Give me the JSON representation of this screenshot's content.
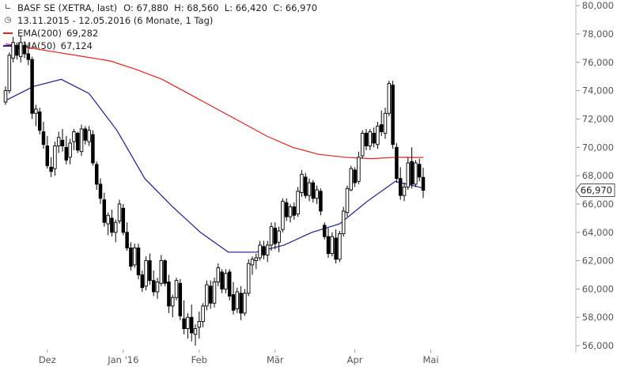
{
  "header": {
    "instrument": "BASF SE (XETRA, last)",
    "ohlc_text": "O: 67,880  H: 68,560  L: 66,420  C: 66,970",
    "range_text": "13.11.2015 - 12.05.2016 (6 Monate, 1 Tag)",
    "icon_chart": "candlestick-icon",
    "icon_clock": "clock-icon"
  },
  "colors": {
    "ema200": "#e8221c",
    "ema50": "#1c1c9c",
    "candle": "#000000",
    "axis_text": "#555555",
    "badge_border": "#555555"
  },
  "chart_data": {
    "type": "candlestick",
    "ylim": [
      55500,
      80400
    ],
    "y_ticks": [
      56000,
      58000,
      60000,
      62000,
      64000,
      66000,
      68000,
      70000,
      72000,
      74000,
      76000,
      78000,
      80000
    ],
    "y_tick_labels": [
      "56,000",
      "58,000",
      "60,000",
      "62,000",
      "64,000",
      "66,000",
      "68,000",
      "70,000",
      "72,000",
      "74,000",
      "76,000",
      "78,000",
      "80,000"
    ],
    "x_labels": [
      {
        "label": "Dez",
        "index": 11
      },
      {
        "label": "Jan '16",
        "index": 31
      },
      {
        "label": "Feb",
        "index": 51
      },
      {
        "label": "Mär",
        "index": 71
      },
      {
        "label": "Apr",
        "index": 92
      },
      {
        "label": "Mai",
        "index": 112
      }
    ],
    "last_price": 66970,
    "last_price_label": "66,970",
    "series": [
      {
        "name": "EMA(200)",
        "value_label": "69,282",
        "color": "#e8221c",
        "values": [
          77300,
          77000,
          76700,
          76400,
          76100,
          75500,
          74800,
          73800,
          72800,
          71800,
          70800,
          70000,
          69500,
          69300,
          69200,
          69300,
          69282
        ]
      },
      {
        "name": "EMA(50)",
        "value_label": "67,124",
        "color": "#1c1c9c",
        "values": [
          73300,
          74300,
          74800,
          73800,
          71200,
          67800,
          65800,
          64000,
          62600,
          62600,
          63100,
          64000,
          64600,
          66200,
          67600,
          67124
        ]
      }
    ],
    "candles": [
      [
        73200,
        74300,
        73000,
        74000
      ],
      [
        74000,
        76700,
        73800,
        76500
      ],
      [
        76300,
        77800,
        76000,
        77400
      ],
      [
        77200,
        77400,
        76200,
        76500
      ],
      [
        76400,
        77900,
        76000,
        77400
      ],
      [
        77200,
        77500,
        76300,
        76600
      ],
      [
        76600,
        77200,
        75800,
        76200
      ],
      [
        76200,
        76400,
        72000,
        72400
      ],
      [
        72400,
        73000,
        71500,
        72700
      ],
      [
        72500,
        72800,
        70900,
        71200
      ],
      [
        71100,
        71800,
        69900,
        70200
      ],
      [
        70100,
        70800,
        68500,
        68700
      ],
      [
        68600,
        69300,
        67900,
        68300
      ],
      [
        68500,
        70400,
        68000,
        70100
      ],
      [
        70100,
        71100,
        69600,
        70700
      ],
      [
        70500,
        71300,
        69700,
        70100
      ],
      [
        70000,
        70800,
        68800,
        69100
      ],
      [
        69300,
        70600,
        68800,
        70300
      ],
      [
        70400,
        71300,
        69800,
        71100
      ],
      [
        71000,
        71100,
        69600,
        69800
      ],
      [
        69700,
        71600,
        69400,
        71300
      ],
      [
        71300,
        71500,
        70200,
        70500
      ],
      [
        70400,
        71500,
        70100,
        71200
      ],
      [
        70900,
        71200,
        68700,
        68900
      ],
      [
        68800,
        69000,
        67000,
        67400
      ],
      [
        67400,
        67800,
        66000,
        66400
      ],
      [
        66300,
        66800,
        64400,
        64700
      ],
      [
        64600,
        65400,
        63800,
        65200
      ],
      [
        65000,
        65600,
        63700,
        64000
      ],
      [
        64000,
        64900,
        63300,
        64700
      ],
      [
        64800,
        66300,
        64600,
        66000
      ],
      [
        65700,
        66000,
        63800,
        64000
      ],
      [
        64000,
        64700,
        62700,
        62900
      ],
      [
        62900,
        63300,
        61300,
        61600
      ],
      [
        61700,
        63200,
        61500,
        62900
      ],
      [
        62900,
        63200,
        60700,
        61000
      ],
      [
        61000,
        61300,
        59800,
        60100
      ],
      [
        60200,
        62300,
        59900,
        62000
      ],
      [
        62000,
        62500,
        60300,
        60600
      ],
      [
        60600,
        61300,
        59500,
        59800
      ],
      [
        59800,
        60800,
        59300,
        60500
      ],
      [
        60400,
        62400,
        60200,
        62000
      ],
      [
        62000,
        62100,
        60200,
        60400
      ],
      [
        60500,
        61000,
        58300,
        58800
      ],
      [
        58800,
        59600,
        58000,
        59400
      ],
      [
        59400,
        60800,
        59200,
        60600
      ],
      [
        60400,
        60700,
        57800,
        58100
      ],
      [
        57900,
        59200,
        56800,
        57200
      ],
      [
        57200,
        58300,
        56500,
        58000
      ],
      [
        58000,
        58900,
        56300,
        56900
      ],
      [
        56800,
        57500,
        56000,
        57200
      ],
      [
        57300,
        58400,
        56500,
        57700
      ],
      [
        57700,
        59000,
        57300,
        58800
      ],
      [
        58800,
        60600,
        58500,
        60300
      ],
      [
        60200,
        60600,
        58600,
        59000
      ],
      [
        59000,
        60800,
        58700,
        60500
      ],
      [
        60500,
        61800,
        60200,
        61500
      ],
      [
        61200,
        61400,
        59700,
        60000
      ],
      [
        60000,
        61400,
        59700,
        61100
      ],
      [
        61200,
        61400,
        59200,
        59500
      ],
      [
        59600,
        60500,
        58200,
        58500
      ],
      [
        58600,
        60100,
        58300,
        59800
      ],
      [
        59700,
        60200,
        57800,
        58300
      ],
      [
        58300,
        60000,
        58100,
        59700
      ],
      [
        59700,
        62100,
        59500,
        61800
      ],
      [
        61700,
        62300,
        61000,
        62100
      ],
      [
        62000,
        62500,
        61400,
        62200
      ],
      [
        62200,
        63400,
        62000,
        63100
      ],
      [
        63000,
        63400,
        62100,
        62400
      ],
      [
        62400,
        63400,
        61900,
        63100
      ],
      [
        63100,
        64700,
        62700,
        64400
      ],
      [
        64300,
        64700,
        62800,
        63200
      ],
      [
        63300,
        64400,
        62600,
        64100
      ],
      [
        64200,
        66400,
        64000,
        66200
      ],
      [
        66100,
        66400,
        64800,
        65100
      ],
      [
        65100,
        66000,
        64700,
        65800
      ],
      [
        65800,
        66100,
        64900,
        65200
      ],
      [
        65300,
        67200,
        65100,
        66900
      ],
      [
        66800,
        68400,
        66500,
        68100
      ],
      [
        67900,
        68200,
        66400,
        66600
      ],
      [
        66600,
        67800,
        66200,
        67500
      ],
      [
        67500,
        67700,
        66100,
        66400
      ],
      [
        66400,
        67300,
        66000,
        67000
      ],
      [
        66900,
        67100,
        65200,
        65500
      ],
      [
        64500,
        64700,
        63500,
        63700
      ],
      [
        63700,
        64300,
        62200,
        62500
      ],
      [
        62500,
        64000,
        62300,
        63700
      ],
      [
        63600,
        64200,
        61800,
        62100
      ],
      [
        62100,
        64100,
        61900,
        63900
      ],
      [
        63900,
        65800,
        63700,
        65500
      ],
      [
        65400,
        67300,
        65100,
        67100
      ],
      [
        67000,
        68700,
        66900,
        68500
      ],
      [
        68400,
        68600,
        67200,
        67500
      ],
      [
        67600,
        69700,
        67400,
        69300
      ],
      [
        69400,
        71200,
        69200,
        71000
      ],
      [
        71000,
        71300,
        69800,
        70100
      ],
      [
        70100,
        71300,
        69800,
        71100
      ],
      [
        71000,
        71400,
        70000,
        70300
      ],
      [
        70200,
        71800,
        69900,
        71500
      ],
      [
        71600,
        72600,
        70800,
        71100
      ],
      [
        71000,
        72800,
        70600,
        72400
      ],
      [
        72400,
        74700,
        72200,
        74500
      ],
      [
        74400,
        74700,
        69900,
        70200
      ],
      [
        70000,
        70300,
        67500,
        67800
      ],
      [
        67800,
        68600,
        66300,
        66600
      ],
      [
        66600,
        67500,
        66200,
        67200
      ],
      [
        67200,
        69300,
        67000,
        68900
      ],
      [
        69000,
        70000,
        67100,
        67400
      ],
      [
        67400,
        69100,
        67200,
        68900
      ],
      [
        68800,
        69200,
        67600,
        67900
      ],
      [
        67880,
        68560,
        66420,
        66970
      ]
    ]
  }
}
